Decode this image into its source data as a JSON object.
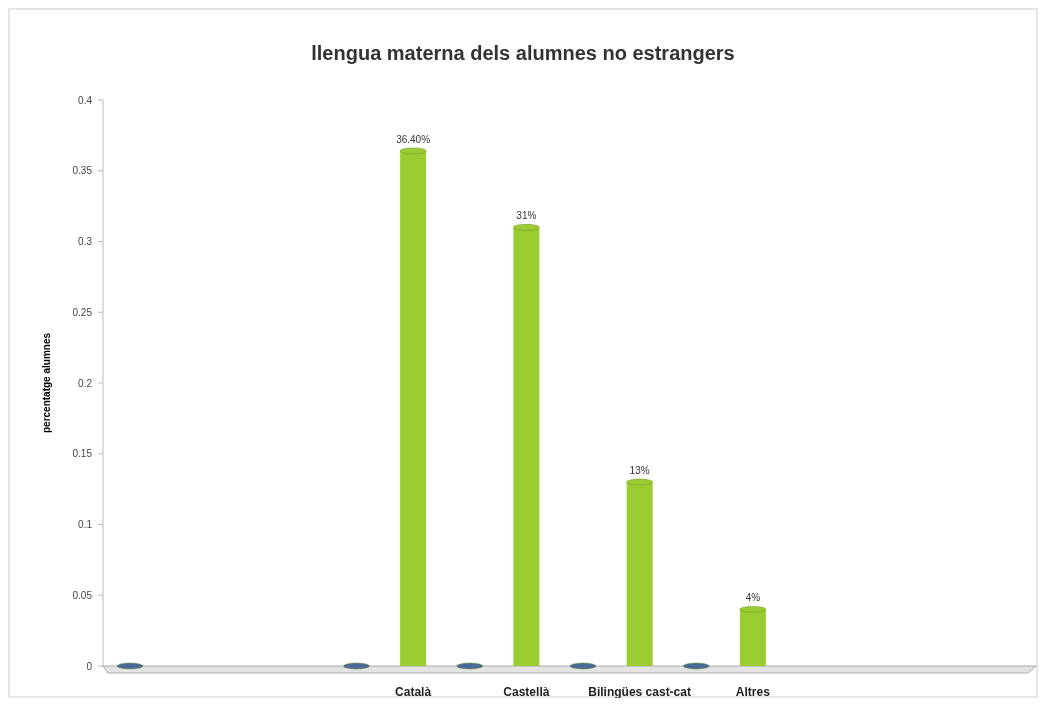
{
  "chart_data": {
    "type": "bar",
    "title": "llengua materna dels alumnes no estrangers",
    "ylabel": "percentatge alumnes",
    "categories": [
      null,
      null,
      "Català",
      "Castellà",
      "Bilingües cast-cat",
      "Altres",
      null,
      null
    ],
    "series": [
      {
        "color": "#4a6a9a",
        "values": [
          0,
          null,
          0,
          0,
          0,
          0,
          null,
          null
        ]
      },
      {
        "color": "#9acd32",
        "values": [
          null,
          null,
          0.364,
          0.31,
          0.13,
          0.04,
          null,
          null
        ],
        "value_labels": [
          null,
          null,
          "36.40%",
          "31%",
          "13%",
          "4%",
          null,
          null
        ]
      }
    ],
    "ylim": [
      0,
      0.4
    ],
    "yticks": [
      0,
      0.05,
      0.1,
      0.15,
      0.2,
      0.25,
      0.3,
      0.35,
      0.4
    ],
    "grid": false
  }
}
